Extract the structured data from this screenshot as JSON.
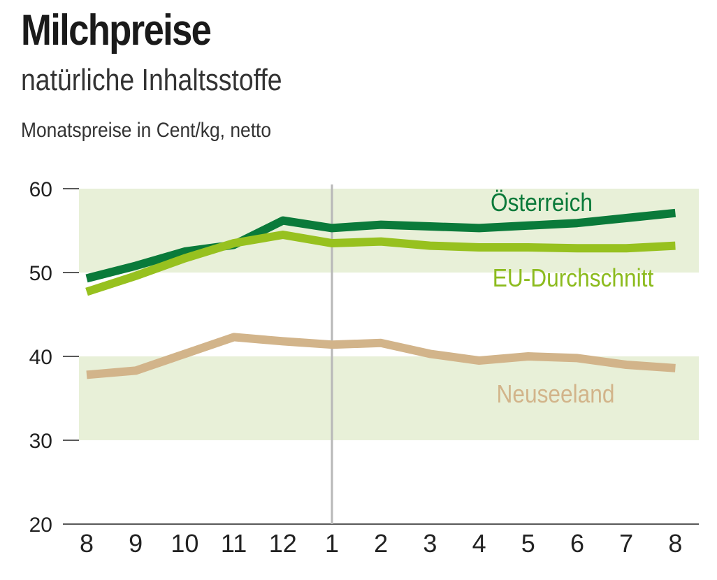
{
  "chart_data": {
    "type": "line",
    "title": "Milchpreise",
    "subtitle": "natürliche Inhaltsstoffe",
    "ylabel": "Monatspreise in Cent/kg, netto",
    "xlabel": "",
    "ylim": [
      20,
      60
    ],
    "yticks": [
      60,
      50,
      40,
      30,
      20
    ],
    "categories": [
      "8",
      "9",
      "10",
      "11",
      "12",
      "1",
      "2",
      "3",
      "4",
      "5",
      "6",
      "7",
      "8"
    ],
    "series": [
      {
        "name": "Österreich",
        "color": "#0a7a3a",
        "label_color": "#0a7a3a",
        "values": [
          49.3,
          50.8,
          52.5,
          53.3,
          56.2,
          55.3,
          55.7,
          55.5,
          55.3,
          55.6,
          55.9,
          56.5,
          57.1
        ]
      },
      {
        "name": "EU-Durchschnitt",
        "color": "#97c11f",
        "label_color": "#8cbb1e",
        "values": [
          47.7,
          49.6,
          51.7,
          53.5,
          54.5,
          53.5,
          53.7,
          53.2,
          53.0,
          53.0,
          52.9,
          52.9,
          53.2
        ]
      },
      {
        "name": "Neuseeland",
        "color": "#d2b48a",
        "label_color": "#d2b48a",
        "values": [
          37.8,
          38.3,
          40.3,
          42.3,
          41.8,
          41.4,
          41.6,
          40.3,
          39.5,
          40.0,
          39.8,
          39.0,
          38.6
        ]
      }
    ],
    "bands": [
      [
        50,
        60
      ],
      [
        30,
        40
      ]
    ],
    "band_color": "#e8f0d8",
    "year_divider_at": "1",
    "grid": false
  }
}
